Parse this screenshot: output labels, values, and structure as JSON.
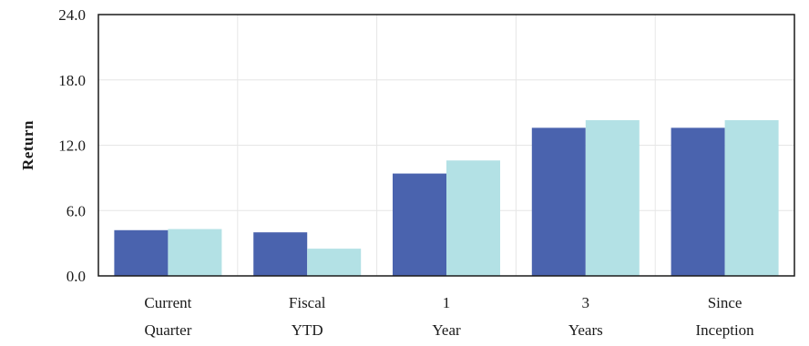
{
  "chart_data": {
    "type": "bar",
    "title": "",
    "xlabel": "",
    "ylabel": "Return",
    "ylim": [
      0,
      24
    ],
    "yticks": [
      "0.0",
      "6.0",
      "12.0",
      "18.0",
      "24.0"
    ],
    "grid": true,
    "legend": "none",
    "categories": [
      [
        "Current",
        "Quarter"
      ],
      [
        "Fiscal",
        "YTD"
      ],
      [
        "1",
        "Year"
      ],
      [
        "3",
        "Years"
      ],
      [
        "Since",
        "Inception"
      ]
    ],
    "series": [
      {
        "color": "#4a63ae",
        "values": [
          4.2,
          4.0,
          9.4,
          13.6,
          13.6
        ]
      },
      {
        "color": "#b3e1e5",
        "values": [
          4.3,
          2.5,
          10.6,
          14.3,
          14.3
        ]
      }
    ]
  }
}
